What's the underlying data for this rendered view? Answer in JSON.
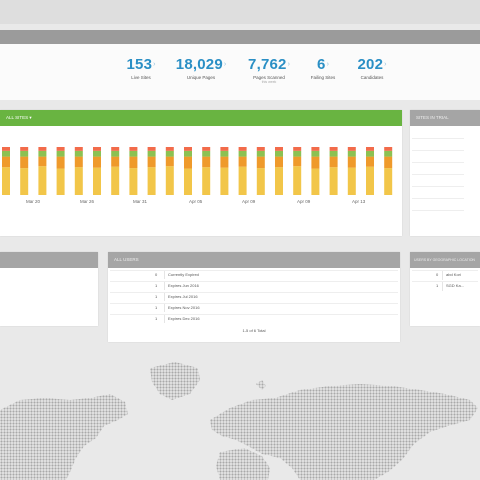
{
  "stats": [
    {
      "value": "153",
      "label": "Live Sites",
      "sub": ""
    },
    {
      "value": "18,029",
      "label": "Unique Pages",
      "sub": ""
    },
    {
      "value": "7,762",
      "label": "Pages Scanned",
      "sub": "this week"
    },
    {
      "value": "6",
      "label": "Failing Sites",
      "sub": ""
    },
    {
      "value": "202",
      "label": "Candidates",
      "sub": ""
    }
  ],
  "arrow_glyph": "›",
  "chart_panel": {
    "title": "ALL SITES ▾",
    "x_labels": [
      "Mar 20",
      "Mar 26",
      "Mar 31",
      "Apr 05",
      "Apr 09",
      "Apr 09",
      "Apr 13"
    ]
  },
  "chart_data": {
    "type": "bar",
    "stacked": true,
    "series_colors": [
      "#f2c649",
      "#ef9a2b",
      "#8cc152",
      "#f26b4a"
    ],
    "bar_count": 22,
    "bars": [
      [
        0.58,
        0.22,
        0.12,
        0.08
      ],
      [
        0.56,
        0.24,
        0.12,
        0.08
      ],
      [
        0.6,
        0.2,
        0.12,
        0.08
      ],
      [
        0.55,
        0.25,
        0.12,
        0.08
      ],
      [
        0.58,
        0.22,
        0.12,
        0.08
      ],
      [
        0.57,
        0.23,
        0.12,
        0.08
      ],
      [
        0.59,
        0.21,
        0.12,
        0.08
      ],
      [
        0.56,
        0.24,
        0.12,
        0.08
      ],
      [
        0.58,
        0.22,
        0.12,
        0.08
      ],
      [
        0.6,
        0.2,
        0.12,
        0.08
      ],
      [
        0.55,
        0.25,
        0.12,
        0.08
      ],
      [
        0.58,
        0.22,
        0.12,
        0.08
      ],
      [
        0.57,
        0.23,
        0.12,
        0.08
      ],
      [
        0.59,
        0.21,
        0.12,
        0.08
      ],
      [
        0.56,
        0.24,
        0.12,
        0.08
      ],
      [
        0.58,
        0.22,
        0.12,
        0.08
      ],
      [
        0.6,
        0.2,
        0.12,
        0.08
      ],
      [
        0.55,
        0.25,
        0.12,
        0.08
      ],
      [
        0.58,
        0.22,
        0.12,
        0.08
      ],
      [
        0.57,
        0.23,
        0.12,
        0.08
      ],
      [
        0.59,
        0.21,
        0.12,
        0.08
      ],
      [
        0.56,
        0.24,
        0.12,
        0.08
      ]
    ]
  },
  "right_panel": {
    "title": "SITES IN TRIAL"
  },
  "left_panel": {
    "title": ""
  },
  "table_panel": {
    "title": "ALL USERS",
    "rows": [
      {
        "n": "0",
        "t": "Currently Expired"
      },
      {
        "n": "1",
        "t": "Expires Jun 2016"
      },
      {
        "n": "1",
        "t": "Expires Jul 2016"
      },
      {
        "n": "1",
        "t": "Expires Nov 2016"
      },
      {
        "n": "1",
        "t": "Expires Dec 2016"
      }
    ],
    "footer": "1-5 of 6 Total"
  },
  "geo_panel": {
    "title": "USERS BY GEOGRAPHIC LOCATION",
    "rows": [
      {
        "n": "0",
        "t": "abd Kori"
      },
      {
        "n": "1",
        "t": "SGD Ka..."
      }
    ]
  },
  "map": {
    "land_color": "#a9a9a9"
  }
}
